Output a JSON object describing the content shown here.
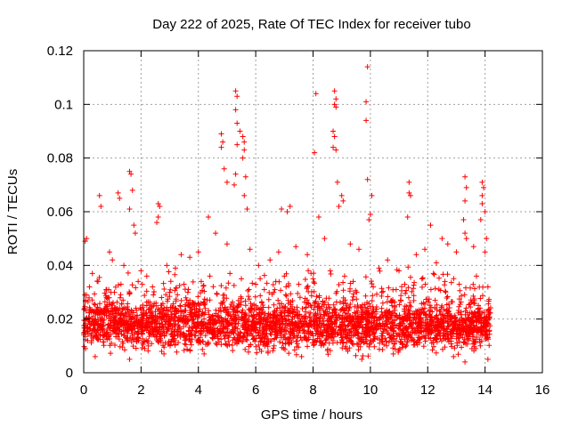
{
  "chart_data": {
    "type": "scatter",
    "title": "Day 222 of 2025, Rate Of TEC Index for receiver tubo",
    "xlabel": "GPS time / hours",
    "ylabel": "ROTI / TECUs",
    "xlim": [
      0,
      16
    ],
    "ylim": [
      0,
      0.12
    ],
    "xticks": [
      0,
      2,
      4,
      6,
      8,
      10,
      12,
      14,
      16
    ],
    "yticks": [
      0,
      0.02,
      0.04,
      0.06,
      0.08,
      0.1,
      0.12
    ],
    "xtick_labels": [
      "0",
      "2",
      "4",
      "6",
      "8",
      "10",
      "12",
      "14",
      "16"
    ],
    "ytick_labels": [
      "0",
      "0.02",
      "0.04",
      "0.06",
      "0.08",
      "0.1",
      "0.12"
    ],
    "grid": true,
    "marker": "+",
    "marker_color": "#ff0000",
    "series": [
      {
        "name": "ROTI",
        "points": [
          [
            0.05,
            0.049
          ],
          [
            0.1,
            0.05
          ],
          [
            0.55,
            0.066
          ],
          [
            0.6,
            0.062
          ],
          [
            0.9,
            0.045
          ],
          [
            1.2,
            0.067
          ],
          [
            1.25,
            0.065
          ],
          [
            1.6,
            0.075
          ],
          [
            1.65,
            0.074
          ],
          [
            1.7,
            0.068
          ],
          [
            1.6,
            0.061
          ],
          [
            1.75,
            0.055
          ],
          [
            1.8,
            0.052
          ],
          [
            2.6,
            0.063
          ],
          [
            2.65,
            0.062
          ],
          [
            2.6,
            0.058
          ],
          [
            2.55,
            0.056
          ],
          [
            3.4,
            0.044
          ],
          [
            4.35,
            0.058
          ],
          [
            4.8,
            0.089
          ],
          [
            4.85,
            0.086
          ],
          [
            4.8,
            0.084
          ],
          [
            4.9,
            0.076
          ],
          [
            5.0,
            0.071
          ],
          [
            5.3,
            0.105
          ],
          [
            5.35,
            0.103
          ],
          [
            5.3,
            0.098
          ],
          [
            5.35,
            0.093
          ],
          [
            5.45,
            0.09
          ],
          [
            5.35,
            0.085
          ],
          [
            5.3,
            0.074
          ],
          [
            5.25,
            0.07
          ],
          [
            5.55,
            0.088
          ],
          [
            5.6,
            0.086
          ],
          [
            5.6,
            0.083
          ],
          [
            5.55,
            0.08
          ],
          [
            5.65,
            0.073
          ],
          [
            5.6,
            0.066
          ],
          [
            5.7,
            0.061
          ],
          [
            6.9,
            0.061
          ],
          [
            7.1,
            0.06
          ],
          [
            7.2,
            0.062
          ],
          [
            8.1,
            0.104
          ],
          [
            8.05,
            0.082
          ],
          [
            8.2,
            0.058
          ],
          [
            8.75,
            0.105
          ],
          [
            8.8,
            0.102
          ],
          [
            8.75,
            0.1
          ],
          [
            8.8,
            0.099
          ],
          [
            8.7,
            0.09
          ],
          [
            8.75,
            0.088
          ],
          [
            8.7,
            0.084
          ],
          [
            8.8,
            0.083
          ],
          [
            8.85,
            0.071
          ],
          [
            9.0,
            0.066
          ],
          [
            9.05,
            0.064
          ],
          [
            8.9,
            0.062
          ],
          [
            9.9,
            0.114
          ],
          [
            9.85,
            0.101
          ],
          [
            9.85,
            0.094
          ],
          [
            9.9,
            0.072
          ],
          [
            10.05,
            0.066
          ],
          [
            10.0,
            0.059
          ],
          [
            9.95,
            0.057
          ],
          [
            11.35,
            0.071
          ],
          [
            11.35,
            0.067
          ],
          [
            11.4,
            0.066
          ],
          [
            11.3,
            0.058
          ],
          [
            12.1,
            0.055
          ],
          [
            12.5,
            0.05
          ],
          [
            13.3,
            0.073
          ],
          [
            13.35,
            0.069
          ],
          [
            13.3,
            0.064
          ],
          [
            13.25,
            0.057
          ],
          [
            13.3,
            0.052
          ],
          [
            13.35,
            0.05
          ],
          [
            13.9,
            0.071
          ],
          [
            13.95,
            0.069
          ],
          [
            13.9,
            0.066
          ],
          [
            13.9,
            0.063
          ],
          [
            14.0,
            0.06
          ],
          [
            13.85,
            0.057
          ],
          [
            14.05,
            0.05
          ],
          [
            14.0,
            0.045
          ],
          [
            13.3,
            0.004
          ],
          [
            1.6,
            0.005
          ],
          [
            0.4,
            0.006
          ],
          [
            2.8,
            0.007
          ],
          [
            9.7,
            0.005
          ],
          [
            12.9,
            0.006
          ],
          [
            4.2,
            0.007
          ],
          [
            6.2,
            0.008
          ],
          [
            7.6,
            0.006
          ],
          [
            10.8,
            0.007
          ],
          [
            14.1,
            0.005
          ],
          [
            0.3,
            0.037
          ],
          [
            0.5,
            0.034
          ],
          [
            1.0,
            0.042
          ],
          [
            1.4,
            0.04
          ],
          [
            2.0,
            0.038
          ],
          [
            2.2,
            0.036
          ],
          [
            2.9,
            0.04
          ],
          [
            3.2,
            0.039
          ],
          [
            3.7,
            0.043
          ],
          [
            4.0,
            0.045
          ],
          [
            4.6,
            0.052
          ],
          [
            5.0,
            0.048
          ],
          [
            5.8,
            0.046
          ],
          [
            6.1,
            0.04
          ],
          [
            6.5,
            0.042
          ],
          [
            6.8,
            0.045
          ],
          [
            7.4,
            0.047
          ],
          [
            7.8,
            0.044
          ],
          [
            8.4,
            0.05
          ],
          [
            9.3,
            0.048
          ],
          [
            9.6,
            0.046
          ],
          [
            10.3,
            0.039
          ],
          [
            10.6,
            0.042
          ],
          [
            11.0,
            0.038
          ],
          [
            11.6,
            0.044
          ],
          [
            11.9,
            0.046
          ],
          [
            12.3,
            0.041
          ],
          [
            12.7,
            0.048
          ],
          [
            13.0,
            0.045
          ],
          [
            13.6,
            0.047
          ],
          [
            0.2,
            0.032
          ],
          [
            0.8,
            0.031
          ],
          [
            1.3,
            0.033
          ],
          [
            1.9,
            0.034
          ],
          [
            2.4,
            0.032
          ],
          [
            3.0,
            0.03
          ],
          [
            3.5,
            0.033
          ],
          [
            4.1,
            0.034
          ],
          [
            4.4,
            0.036
          ],
          [
            5.1,
            0.037
          ],
          [
            5.5,
            0.035
          ],
          [
            6.0,
            0.033
          ],
          [
            6.3,
            0.031
          ],
          [
            6.7,
            0.034
          ],
          [
            7.0,
            0.036
          ],
          [
            7.5,
            0.033
          ],
          [
            8.0,
            0.035
          ],
          [
            8.6,
            0.038
          ],
          [
            9.1,
            0.036
          ],
          [
            9.4,
            0.034
          ],
          [
            10.1,
            0.032
          ],
          [
            10.4,
            0.03
          ],
          [
            10.9,
            0.031
          ],
          [
            11.2,
            0.033
          ],
          [
            11.8,
            0.035
          ],
          [
            12.2,
            0.037
          ],
          [
            12.6,
            0.034
          ],
          [
            13.1,
            0.033
          ],
          [
            13.7,
            0.036
          ],
          [
            14.1,
            0.032
          ]
        ]
      }
    ],
    "dense_band": {
      "description": "dense cloud of ROTI samples",
      "x_range": [
        0,
        14.2
      ],
      "y_range": [
        0.005,
        0.03
      ],
      "typical": 0.017
    }
  }
}
